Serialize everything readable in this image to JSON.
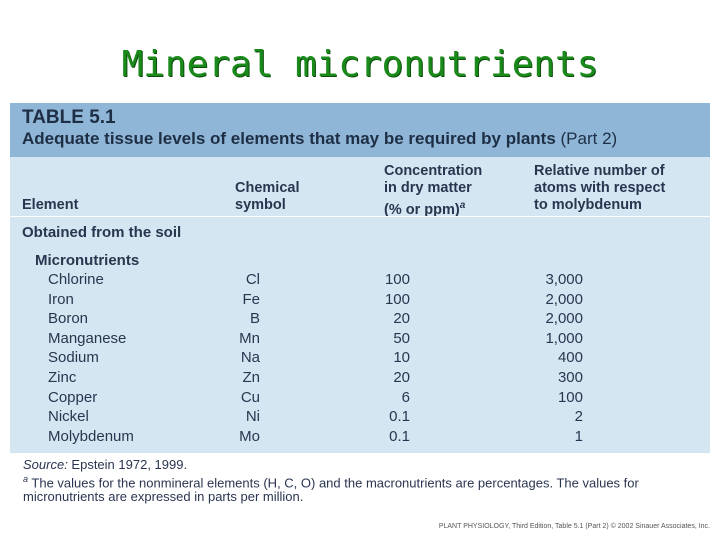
{
  "slide_title": "Mineral micronutrients",
  "table": {
    "number": "TABLE 5.1",
    "caption_main": "Adequate tissue levels of elements that may be required by plants",
    "caption_part": " (Part 2)",
    "columns": {
      "element": "Element",
      "symbol_l1": "Chemical",
      "symbol_l2": "symbol",
      "conc_l1": "Concentration",
      "conc_l2": "in dry matter",
      "conc_l3": "(% or ppm)",
      "conc_sup": "a",
      "rel_l1": "Relative number of",
      "rel_l2": "atoms with respect",
      "rel_l3": "to molybdenum"
    },
    "section": "Obtained from the soil",
    "subsection": "Micronutrients",
    "rows": [
      {
        "element": "Chlorine",
        "symbol": "Cl",
        "concentration": "100",
        "relative": "3,000"
      },
      {
        "element": "Iron",
        "symbol": "Fe",
        "concentration": "100",
        "relative": "2,000"
      },
      {
        "element": "Boron",
        "symbol": "B",
        "concentration": "20",
        "relative": "2,000"
      },
      {
        "element": "Manganese",
        "symbol": "Mn",
        "concentration": "50",
        "relative": "1,000"
      },
      {
        "element": "Sodium",
        "symbol": "Na",
        "concentration": "10",
        "relative": "400"
      },
      {
        "element": "Zinc",
        "symbol": "Zn",
        "concentration": "20",
        "relative": "300"
      },
      {
        "element": "Copper",
        "symbol": "Cu",
        "concentration": "6",
        "relative": "100"
      },
      {
        "element": "Nickel",
        "symbol": "Ni",
        "concentration": "0.1",
        "relative": "2"
      },
      {
        "element": "Molybdenum",
        "symbol": "Mo",
        "concentration": "0.1",
        "relative": "1"
      }
    ]
  },
  "footnotes": {
    "source_label": "Source:",
    "source_text": " Epstein 1972, 1999.",
    "note_marker": "a",
    "note_text": " The values for the nonmineral elements (H, C, O) and the macronutrients are percentages. The values for micronutrients are expressed in parts per million."
  },
  "credit": "PLANT PHYSIOLOGY, Third Edition, Table 5.1 (Part 2)  © 2002 Sinauer Associates, Inc.",
  "colors": {
    "title": "#1a8a1a",
    "header_band": "#8fb6d6",
    "table_body": "#d4e6f1",
    "text": "#2a3550"
  }
}
